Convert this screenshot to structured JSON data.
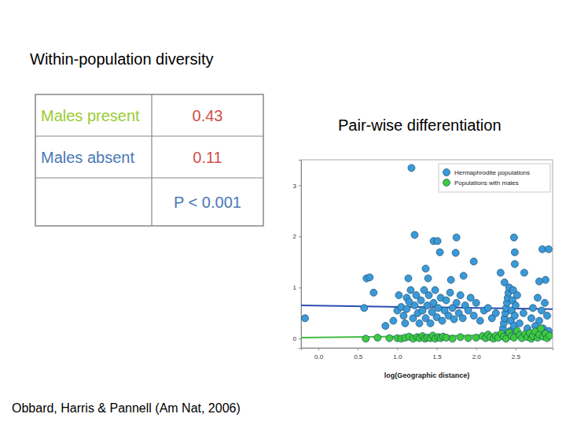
{
  "heading": "Within-population diversity",
  "table": {
    "rows": [
      {
        "label": "Males present",
        "value": 0.43
      },
      {
        "label": "Males absent",
        "value": 0.11
      }
    ],
    "note": "P < 0.001"
  },
  "citation": "Obbard, Harris & Pannell (Am Nat, 2006)",
  "chart_data": {
    "type": "scatter",
    "title": "Pair-wise differentiation",
    "x_label": "log(Geographic distance)",
    "xlim": [
      -0.22,
      2.97
    ],
    "ylim": [
      -0.18,
      3.5
    ],
    "xticks": [
      {
        "value": 0,
        "label": "0.0"
      },
      0.5,
      {
        "value": 1,
        "label": "1.0"
      },
      1.5,
      {
        "value": 2,
        "label": "2.0"
      },
      2.5
    ],
    "yticks": [
      0,
      1,
      2,
      3
    ],
    "legend": "upper right",
    "series": [
      {
        "name": "Hermaphrodite populations",
        "color": "#3a9ad9",
        "marker": "circle",
        "x": [
          -0.17,
          0.61,
          0.65,
          1.18,
          1.22,
          1.46,
          1.51,
          1.75,
          1.54,
          1.74,
          1.97,
          1.36,
          1.14,
          1.12,
          1.39,
          1.68,
          1.84,
          2.31,
          2.48,
          2.49,
          2.49,
          2.61,
          2.84,
          2.92,
          2.88,
          2.8,
          0.95,
          1.0,
          1.02,
          1.05,
          1.08,
          1.1,
          1.12,
          1.15,
          1.17,
          1.2,
          1.22,
          1.24,
          1.26,
          1.28,
          1.3,
          1.32,
          1.34,
          1.36,
          1.38,
          1.4,
          1.42,
          1.44,
          1.46,
          1.48,
          1.5,
          1.52,
          1.55,
          1.57,
          1.6,
          1.62,
          1.65,
          1.67,
          1.7,
          1.72,
          1.75,
          1.78,
          1.8,
          1.83,
          1.86,
          1.9,
          1.93,
          1.97,
          2.0,
          2.05,
          2.1,
          2.15,
          2.2,
          2.25,
          2.33,
          2.34,
          2.35,
          2.36,
          2.37,
          2.38,
          2.39,
          2.4,
          2.41,
          2.42,
          2.43,
          2.44,
          2.45,
          2.46,
          2.47,
          2.48,
          2.49,
          2.5,
          2.52,
          2.36,
          2.4,
          2.55,
          2.6,
          2.65,
          2.7,
          2.72,
          2.75,
          2.78,
          2.8,
          2.83,
          2.85,
          2.87,
          2.9,
          2.92,
          0.7,
          0.58,
          0.85
        ],
        "values": [
          0.4,
          1.18,
          1.2,
          3.34,
          2.03,
          1.91,
          1.91,
          1.98,
          1.69,
          1.68,
          1.51,
          1.37,
          1.18,
          0.8,
          1.18,
          1.15,
          1.23,
          1.29,
          1.98,
          1.69,
          1.46,
          1.29,
          1.75,
          1.75,
          1.15,
          1.12,
          0.35,
          0.55,
          0.85,
          0.62,
          0.45,
          0.3,
          0.58,
          0.72,
          0.95,
          0.4,
          0.65,
          0.85,
          0.5,
          0.3,
          0.75,
          0.55,
          0.95,
          0.4,
          0.65,
          0.85,
          0.3,
          0.52,
          0.7,
          0.95,
          0.42,
          0.6,
          0.8,
          0.35,
          0.55,
          0.75,
          0.45,
          0.9,
          0.6,
          0.38,
          0.7,
          0.5,
          0.85,
          0.4,
          0.65,
          0.55,
          0.8,
          0.45,
          0.7,
          0.35,
          0.55,
          0.6,
          0.4,
          0.5,
          0.1,
          0.2,
          0.3,
          0.4,
          0.5,
          0.6,
          0.7,
          0.8,
          0.9,
          1.0,
          0.15,
          0.35,
          0.55,
          0.75,
          0.95,
          0.25,
          0.45,
          0.65,
          0.85,
          1.1,
          0.05,
          0.3,
          0.5,
          0.2,
          0.4,
          0.6,
          0.25,
          0.8,
          0.35,
          0.55,
          0.2,
          0.7,
          0.45,
          0.15,
          0.9,
          0.6,
          0.25
        ]
      },
      {
        "name": "Populations with males",
        "color": "#3ccc3c",
        "marker": "circle",
        "x": [
          1.0,
          1.05,
          1.1,
          1.15,
          1.2,
          1.25,
          1.28,
          1.32,
          1.35,
          1.38,
          1.42,
          1.45,
          1.48,
          1.52,
          1.55,
          1.58,
          1.62,
          1.7,
          1.8,
          1.9,
          2.0,
          2.08,
          2.12,
          2.15,
          2.18,
          2.22,
          2.25,
          2.28,
          2.32,
          2.35,
          2.38,
          2.42,
          2.45,
          2.48,
          2.52,
          2.55,
          2.58,
          2.62,
          2.65,
          2.68,
          2.7,
          2.72,
          2.75,
          2.78,
          2.8,
          2.82,
          2.85,
          2.88,
          2.9,
          2.93,
          0.6,
          0.75,
          0.9
        ],
        "values": [
          0.01,
          0.0,
          0.02,
          0.04,
          0.0,
          0.03,
          0.01,
          0.05,
          0.0,
          0.02,
          0.01,
          0.06,
          0.0,
          0.03,
          0.01,
          0.04,
          0.02,
          0.0,
          0.03,
          0.01,
          0.02,
          0.05,
          0.01,
          0.08,
          0.03,
          0.0,
          0.06,
          0.02,
          0.1,
          0.04,
          0.0,
          0.12,
          0.05,
          0.02,
          0.15,
          0.07,
          0.01,
          0.09,
          0.03,
          0.11,
          0.0,
          0.05,
          0.14,
          0.02,
          0.08,
          0.2,
          0.04,
          0.1,
          0.01,
          0.06,
          0.0,
          0.02,
          0.01
        ]
      },
      {
        "type": "line",
        "color": "#2b4fb0",
        "x": [
          -0.22,
          2.97
        ],
        "values": [
          0.65,
          0.58
        ]
      },
      {
        "type": "line",
        "color": "#44bb44",
        "x": [
          -0.22,
          2.97
        ],
        "values": [
          0.02,
          0.08
        ]
      }
    ]
  }
}
